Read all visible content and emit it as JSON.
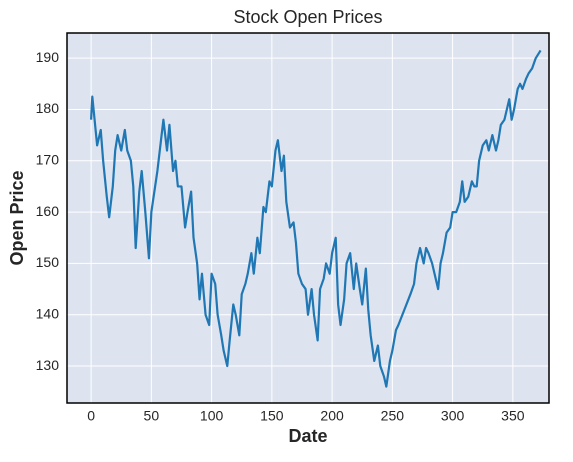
{
  "chart_data": {
    "type": "line",
    "title": "Stock Open Prices",
    "x_label": "Date",
    "y_label": "Open Price",
    "x": [
      0,
      1,
      5,
      8,
      10,
      13,
      15,
      18,
      20,
      22,
      25,
      28,
      30,
      33,
      35,
      37,
      40,
      42,
      45,
      48,
      50,
      55,
      58,
      60,
      63,
      65,
      68,
      70,
      72,
      75,
      78,
      80,
      83,
      85,
      88,
      90,
      92,
      95,
      98,
      100,
      103,
      105,
      108,
      110,
      113,
      115,
      118,
      120,
      123,
      125,
      128,
      130,
      133,
      135,
      138,
      140,
      143,
      145,
      148,
      150,
      153,
      155,
      158,
      160,
      162,
      165,
      168,
      170,
      172,
      175,
      178,
      180,
      183,
      185,
      188,
      190,
      193,
      195,
      198,
      200,
      203,
      205,
      207,
      210,
      212,
      215,
      218,
      220,
      223,
      225,
      228,
      230,
      232,
      235,
      238,
      240,
      243,
      245,
      248,
      250,
      253,
      255,
      260,
      265,
      268,
      270,
      273,
      276,
      278,
      280,
      283,
      285,
      288,
      290,
      292,
      295,
      298,
      300,
      303,
      306,
      308,
      310,
      313,
      316,
      318,
      320,
      322,
      325,
      328,
      330,
      333,
      336,
      338,
      340,
      343,
      345,
      347,
      349,
      351,
      354,
      356,
      358,
      361,
      363,
      366,
      369,
      373
    ],
    "series": [
      {
        "name": "Open",
        "color": "#1f77b4",
        "values": [
          178,
          182.5,
          173,
          176,
          170,
          163,
          159,
          165,
          172,
          175,
          172,
          176,
          172,
          170,
          165,
          153,
          164,
          168,
          160,
          151,
          160,
          168,
          174,
          178,
          172,
          177,
          168,
          170,
          165,
          165,
          157,
          160,
          164,
          155,
          150,
          143,
          148,
          140,
          138,
          148,
          146,
          140,
          136,
          133,
          130,
          135,
          142,
          140,
          136,
          144,
          146,
          148,
          152,
          148,
          155,
          152,
          161,
          160,
          166,
          165,
          172,
          174,
          168,
          171,
          162,
          157,
          158,
          154,
          148,
          146,
          145,
          140,
          145,
          140,
          135,
          145,
          147,
          150,
          148,
          152,
          155,
          142,
          138,
          143,
          150,
          152,
          145,
          150,
          145,
          142,
          149,
          141,
          136,
          131,
          134,
          130,
          128,
          126,
          131,
          133,
          137,
          138,
          141,
          144,
          146,
          150,
          153,
          150,
          153,
          152,
          150,
          148,
          145,
          150,
          152,
          156,
          157,
          160,
          160,
          162,
          166,
          162,
          163,
          166,
          165,
          165,
          170,
          173,
          174,
          172,
          175,
          172,
          174,
          177,
          178,
          180,
          182,
          178,
          180,
          184,
          185,
          184,
          186,
          187,
          188,
          190,
          191.5
        ]
      }
    ],
    "xlim": [
      -20,
      380
    ],
    "ylim": [
      122.8,
      194.9
    ],
    "xticks": [
      0,
      50,
      100,
      150,
      200,
      250,
      300,
      350
    ],
    "yticks": [
      130,
      140,
      150,
      160,
      170,
      180,
      190
    ],
    "grid": true
  }
}
